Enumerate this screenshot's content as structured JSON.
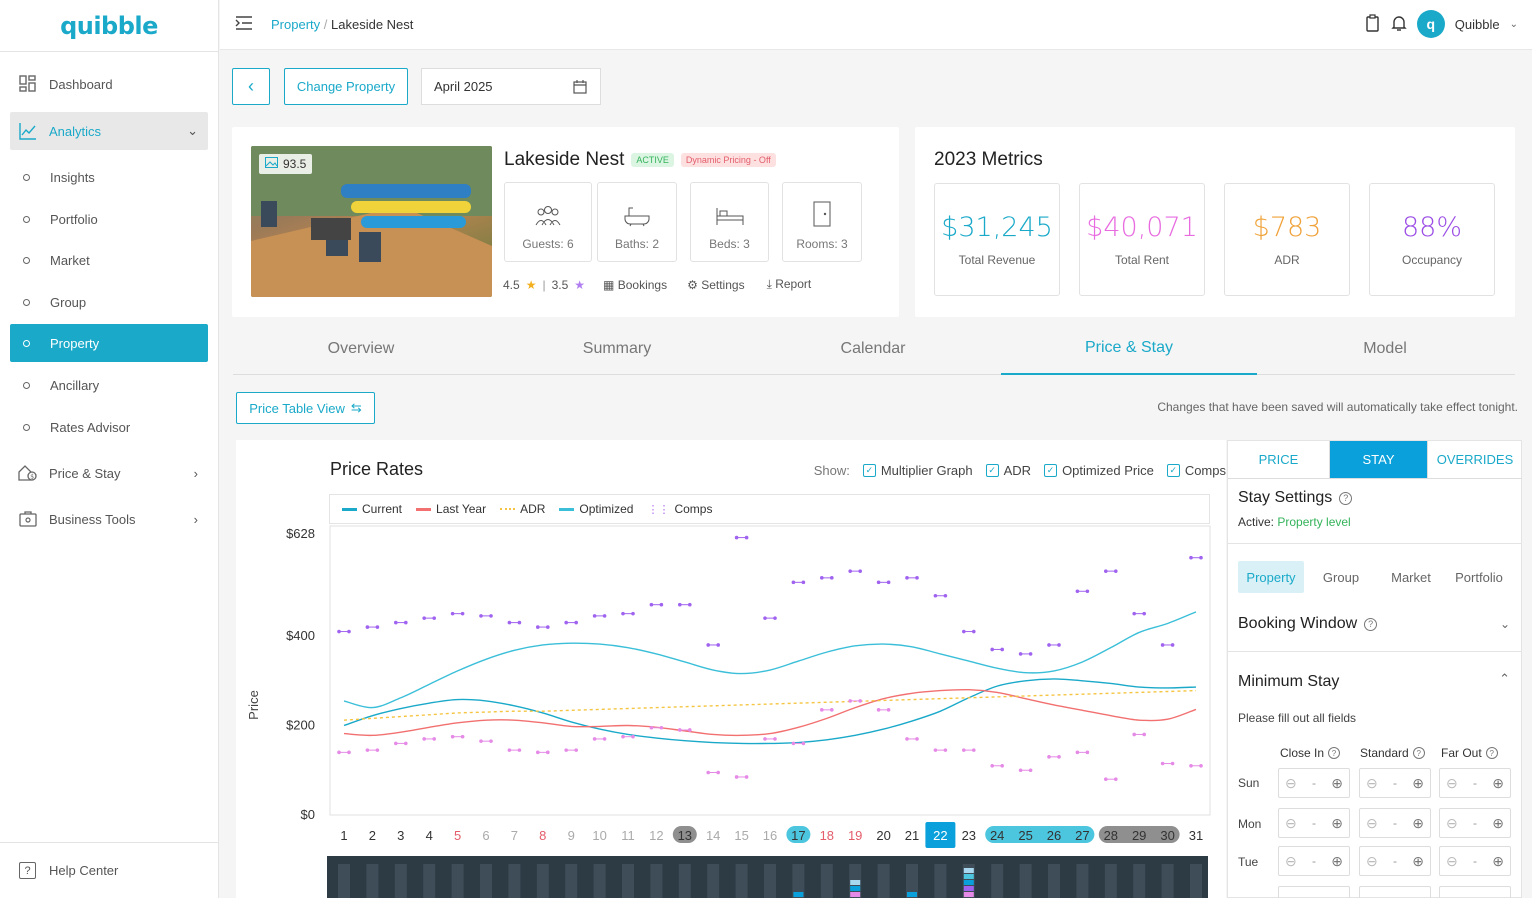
{
  "brand": {
    "logo_text": "quibble",
    "accent": "#1aa9c9"
  },
  "sidebar": {
    "items": [
      {
        "label": "Dashboard",
        "icon": "dashboard-icon"
      },
      {
        "label": "Analytics",
        "icon": "chart-icon"
      },
      {
        "label": "Insights"
      },
      {
        "label": "Portfolio"
      },
      {
        "label": "Market"
      },
      {
        "label": "Group"
      },
      {
        "label": "Property"
      },
      {
        "label": "Ancillary"
      },
      {
        "label": "Rates Advisor"
      },
      {
        "label": "Price & Stay",
        "icon": "price-stay-icon"
      },
      {
        "label": "Business Tools",
        "icon": "business-tools-icon"
      }
    ],
    "help": "Help Center"
  },
  "topbar": {
    "crumb_link": "Property",
    "crumb_sep": "/",
    "crumb_current": "Lakeside Nest",
    "user_name": "Quibble"
  },
  "toolbar": {
    "change_property": "Change Property",
    "month": "April 2025"
  },
  "property": {
    "name": "Lakeside Nest",
    "status": "ACTIVE",
    "pricing": "Dynamic Pricing - Off",
    "score": "93.5",
    "features": [
      "Guests: 6",
      "Baths: 2",
      "Beds: 3",
      "Rooms: 3"
    ],
    "rating1": "4.5",
    "rating_sep": "|",
    "rating2": "3.5",
    "actions": [
      "Bookings",
      "Settings",
      "Report"
    ]
  },
  "metrics": {
    "title": "2023 Metrics",
    "items": [
      {
        "value": "$31,245",
        "label": "Total Revenue",
        "color": "#1aa9c9"
      },
      {
        "value": "$40,071",
        "label": "Total Rent",
        "color": "#e86ce0"
      },
      {
        "value": "$783",
        "label": "ADR",
        "color": "#f0a23a"
      },
      {
        "value": "88%",
        "label": "Occupancy",
        "color": "#9b4de6"
      }
    ]
  },
  "tabs": [
    "Overview",
    "Summary",
    "Calendar",
    "Price & Stay",
    "Model"
  ],
  "price_table_btn": "Price Table View",
  "save_note": "Changes that have been saved will automatically take effect tonight.",
  "chart_header": {
    "title": "Price Rates",
    "show_label": "Show:",
    "toggles": [
      "Multiplier Graph",
      "ADR",
      "Optimized Price",
      "Comps"
    ]
  },
  "chart_data": {
    "type": "line",
    "title": "Price Rates",
    "ylabel": "Price",
    "y_ticks": [
      "$628",
      "$400",
      "$200",
      "$0"
    ],
    "ylim": [
      0,
      628
    ],
    "x": [
      1,
      2,
      3,
      4,
      5,
      6,
      7,
      8,
      9,
      10,
      11,
      12,
      13,
      14,
      15,
      16,
      17,
      18,
      19,
      20,
      21,
      22,
      23,
      24,
      25,
      26,
      27,
      28,
      29,
      30,
      31
    ],
    "red_days": [
      5,
      8,
      18,
      19
    ],
    "gray_days": [
      6,
      7,
      9,
      10,
      11,
      12,
      14,
      15,
      16
    ],
    "selected_day": 22,
    "series": [
      {
        "name": "Current",
        "color": "#1aa9c9",
        "values": [
          200,
          222,
          238,
          250,
          258,
          255,
          244,
          228,
          208,
          192,
          180,
          172,
          166,
          162,
          160,
          160,
          162,
          168,
          178,
          192,
          210,
          232,
          262,
          288,
          300,
          304,
          300,
          294,
          286,
          284,
          286
        ]
      },
      {
        "name": "Last Year",
        "color": "#f27070",
        "values": [
          182,
          178,
          185,
          196,
          206,
          212,
          212,
          206,
          198,
          198,
          200,
          196,
          188,
          180,
          178,
          182,
          196,
          216,
          240,
          260,
          272,
          278,
          280,
          274,
          260,
          246,
          234,
          222,
          212,
          214,
          236
        ]
      },
      {
        "name": "ADR",
        "color": "#f5c542",
        "values": [
          212,
          216,
          220,
          224,
          228,
          230,
          232,
          232,
          234,
          236,
          238,
          240,
          242,
          244,
          246,
          248,
          250,
          252,
          254,
          256,
          258,
          260,
          262,
          264,
          266,
          268,
          270,
          272,
          274,
          276,
          278
        ]
      },
      {
        "name": "Optimized",
        "color": "#3bbfd9",
        "values": [
          255,
          240,
          262,
          292,
          322,
          348,
          368,
          380,
          384,
          382,
          374,
          360,
          342,
          324,
          316,
          324,
          344,
          364,
          378,
          382,
          376,
          360,
          344,
          328,
          318,
          322,
          342,
          374,
          408,
          428,
          454
        ]
      },
      {
        "name": "Comps",
        "color": "#b36ff2",
        "values": [
          [
            140,
            410
          ],
          [
            145,
            420
          ],
          [
            160,
            430
          ],
          [
            170,
            440
          ],
          [
            175,
            450
          ],
          [
            165,
            445
          ],
          [
            145,
            430
          ],
          [
            140,
            420
          ],
          [
            145,
            430
          ],
          [
            170,
            445
          ],
          [
            175,
            450
          ],
          [
            195,
            470
          ],
          [
            190,
            470
          ],
          [
            95,
            380
          ],
          [
            85,
            620
          ],
          [
            170,
            440
          ],
          [
            160,
            520
          ],
          [
            235,
            530
          ],
          [
            255,
            545
          ],
          [
            235,
            520
          ],
          [
            170,
            530
          ],
          [
            145,
            490
          ],
          [
            145,
            410
          ],
          [
            110,
            370
          ],
          [
            100,
            360
          ],
          [
            130,
            380
          ],
          [
            140,
            500
          ],
          [
            80,
            545
          ],
          [
            180,
            450
          ],
          [
            115,
            380
          ],
          [
            110,
            575
          ]
        ]
      }
    ]
  },
  "stay_panel": {
    "segments": [
      "PRICE",
      "STAY",
      "OVERRIDES"
    ],
    "title": "Stay Settings",
    "active_label": "Active:",
    "active_value": "Property level",
    "scopes": [
      "Property",
      "Group",
      "Market",
      "Portfolio"
    ],
    "booking_window": "Booking Window",
    "min_stay": "Minimum Stay",
    "fill_note": "Please fill out all fields",
    "columns": [
      "Close In",
      "Standard",
      "Far Out"
    ],
    "days": [
      "Sun",
      "Mon",
      "Tue"
    ],
    "stepper_value": "-"
  }
}
